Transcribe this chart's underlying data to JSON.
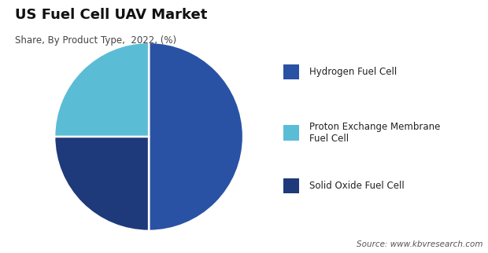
{
  "title": "US Fuel Cell UAV Market",
  "subtitle": "Share, By Product Type,  2022, (%)",
  "values": [
    50,
    25,
    25
  ],
  "colors": [
    "#2a52a4",
    "#5bbcd6",
    "#1e3a7a"
  ],
  "legend_labels": [
    "Hydrogen Fuel Cell",
    "Proton Exchange Membrane\nFuel Cell",
    "Solid Oxide Fuel Cell"
  ],
  "legend_colors": [
    "#2a52a4",
    "#5bbcd6",
    "#1e3a7a"
  ],
  "source_text": "Source: www.kbvresearch.com",
  "background_color": "#ffffff",
  "startangle": 90,
  "pie_order": [
    0,
    2,
    1
  ]
}
